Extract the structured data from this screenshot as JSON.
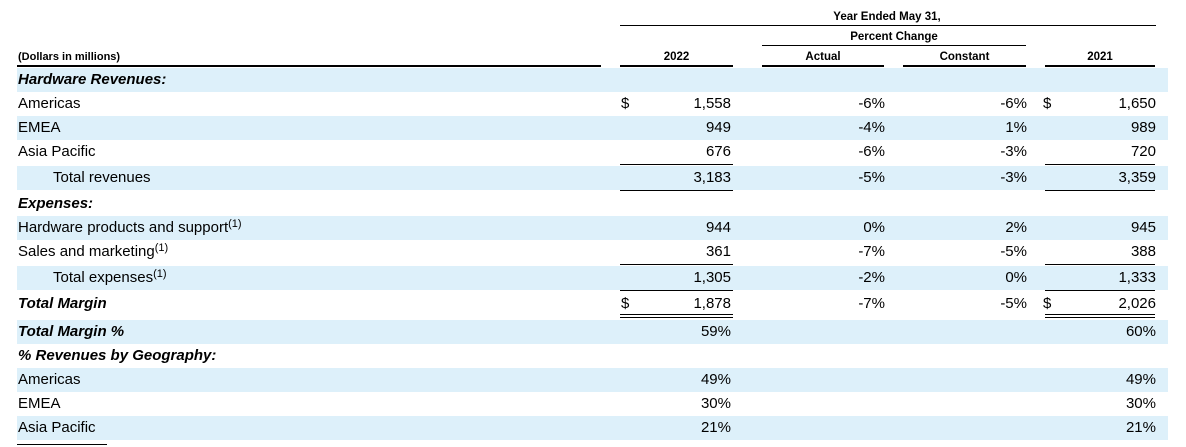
{
  "header": {
    "period": "Year Ended May 31,",
    "percent_change": "Percent Change",
    "units": "(Dollars in millions)",
    "col_2022": "2022",
    "col_actual": "Actual",
    "col_constant": "Constant",
    "col_2021": "2021"
  },
  "rows": [
    {
      "label": "Hardware Revenues:",
      "style": "section"
    },
    {
      "label": "Americas",
      "cur22": "$",
      "v2022": "1,558",
      "actual": "-6%",
      "constant": "-6%",
      "cur21": "$",
      "v2021": "1,650"
    },
    {
      "label": "EMEA",
      "v2022": "949",
      "actual": "-4%",
      "constant": "1%",
      "v2021": "989"
    },
    {
      "label": "Asia Pacific",
      "v2022": "676",
      "actual": "-6%",
      "constant": "-3%",
      "v2021": "720"
    },
    {
      "label": "Total revenues",
      "style": "indent",
      "v2022": "3,183",
      "actual": "-5%",
      "constant": "-3%",
      "v2021": "3,359"
    },
    {
      "label": "Expenses:",
      "style": "section"
    },
    {
      "label": "Hardware products and support",
      "sup": "(1)",
      "v2022": "944",
      "actual": "0%",
      "constant": "2%",
      "v2021": "945"
    },
    {
      "label": "Sales and marketing",
      "sup": "(1)",
      "v2022": "361",
      "actual": "-7%",
      "constant": "-5%",
      "v2021": "388"
    },
    {
      "label": "Total expenses",
      "sup": "(1)",
      "style": "indent",
      "v2022": "1,305",
      "actual": "-2%",
      "constant": "0%",
      "v2021": "1,333"
    },
    {
      "label": "Total Margin",
      "style": "section",
      "cur22": "$",
      "v2022": "1,878",
      "actual": "-7%",
      "constant": "-5%",
      "cur21": "$",
      "v2021": "2,026"
    },
    {
      "label": "Total Margin %",
      "style": "section",
      "v2022": "59%",
      "v2021": "60%"
    },
    {
      "label": "% Revenues by Geography:",
      "style": "section"
    },
    {
      "label": "Americas",
      "v2022": "49%",
      "v2021": "49%"
    },
    {
      "label": "EMEA",
      "v2022": "30%",
      "v2021": "30%"
    },
    {
      "label": "Asia Pacific",
      "v2022": "21%",
      "v2021": "21%"
    }
  ]
}
